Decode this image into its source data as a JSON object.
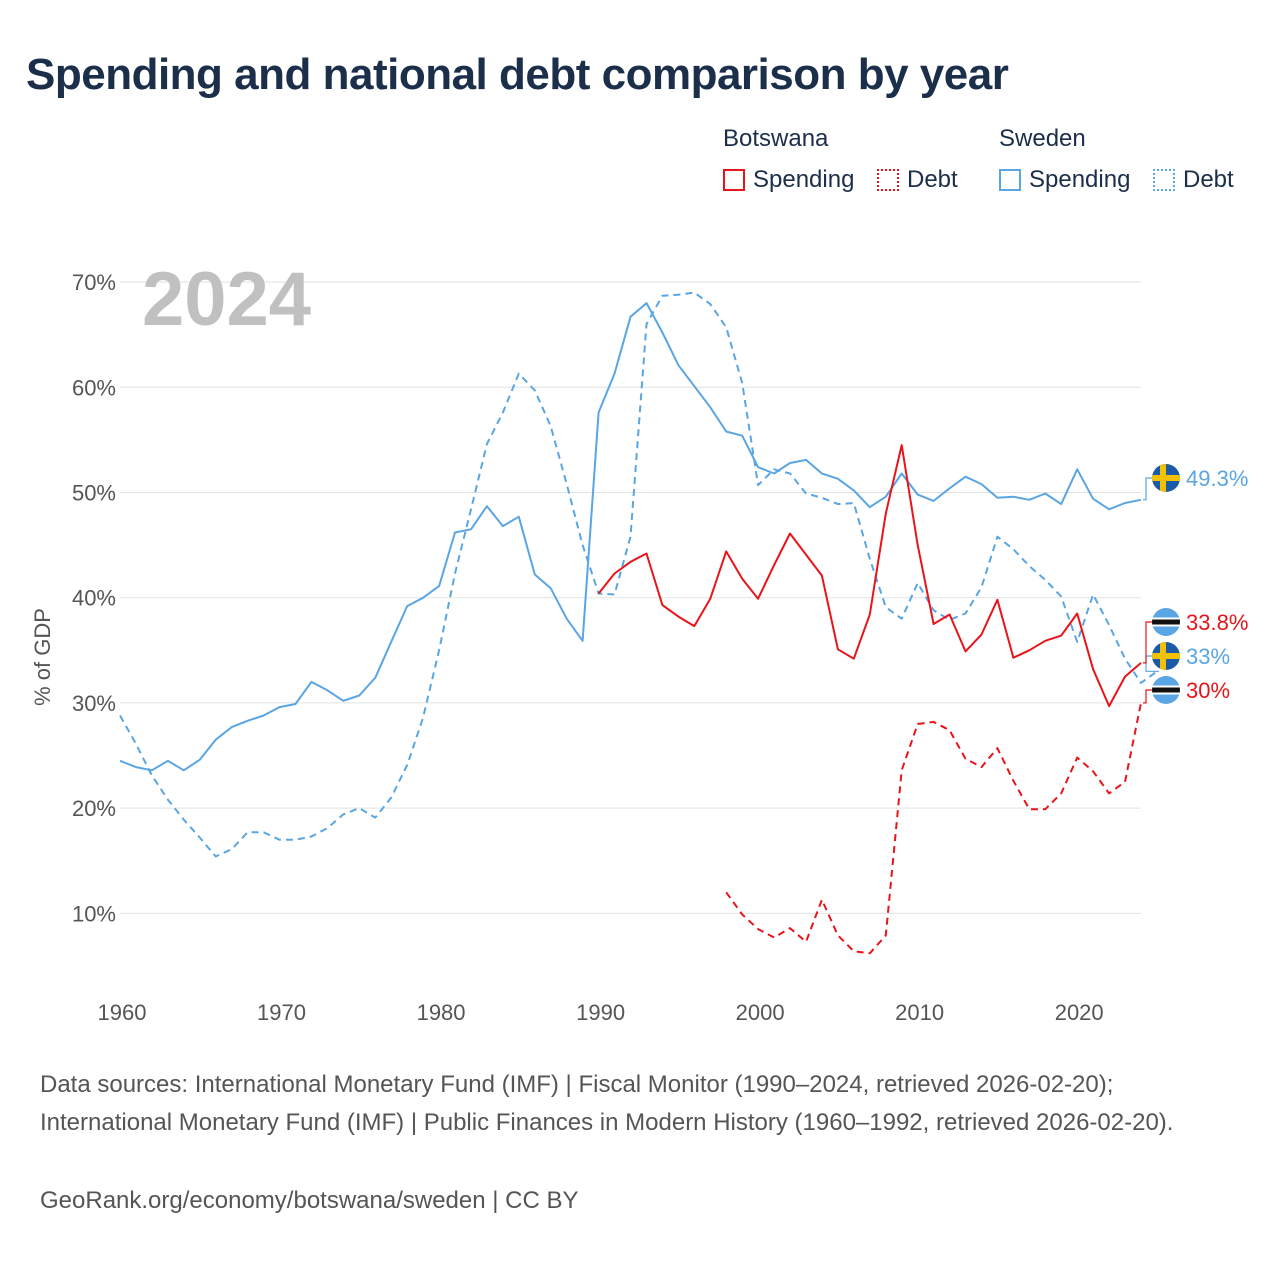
{
  "title": "Spending and national debt comparison by year",
  "legend": {
    "botswana": {
      "label": "Botswana",
      "spending": "Spending",
      "debt": "Debt",
      "color": "#e8141a"
    },
    "sweden": {
      "label": "Sweden",
      "spending": "Spending",
      "debt": "Debt",
      "color": "#5aa5e3"
    }
  },
  "footer": {
    "sources": "Data sources: International Monetary Fund (IMF) | Fiscal Monitor (1990–2024, retrieved 2026-02-20); International Monetary Fund (IMF) | Public Finances in Modern History (1960–1992, retrieved 2026-02-20).",
    "credit": "GeoRank.org/economy/botswana/sweden | CC BY"
  },
  "chart_data": {
    "type": "line",
    "current_year": "2024",
    "ylabel": "% of GDP",
    "xlim": [
      1960,
      2024
    ],
    "ylim": [
      3,
      72
    ],
    "y_ticks": [
      {
        "value": 10,
        "label": "10%"
      },
      {
        "value": 20,
        "label": "20%"
      },
      {
        "value": 30,
        "label": "30%"
      },
      {
        "value": 40,
        "label": "40%"
      },
      {
        "value": 50,
        "label": "50%"
      },
      {
        "value": 60,
        "label": "60%"
      },
      {
        "value": 70,
        "label": "70%"
      }
    ],
    "x_ticks": [
      {
        "value": 1960,
        "label": "1960"
      },
      {
        "value": 1970,
        "label": "1970"
      },
      {
        "value": 1980,
        "label": "1980"
      },
      {
        "value": 1990,
        "label": "1990"
      },
      {
        "value": 2000,
        "label": "2000"
      },
      {
        "value": 2010,
        "label": "2010"
      },
      {
        "value": 2020,
        "label": "2020"
      }
    ],
    "series": [
      {
        "name": "Sweden Spending",
        "country": "Sweden",
        "metric": "Spending",
        "color": "#5aa5e3",
        "dash": false,
        "end_label": "49.3%",
        "flag": "sweden",
        "start_year": 1960,
        "values": [
          24.5,
          23.9,
          23.6,
          24.5,
          23.6,
          24.6,
          26.5,
          27.7,
          28.3,
          28.8,
          29.6,
          29.9,
          32.0,
          31.2,
          30.2,
          30.7,
          32.4,
          35.8,
          39.2,
          40.0,
          41.1,
          46.2,
          46.5,
          48.7,
          46.8,
          47.7,
          42.2,
          40.9,
          38.0,
          35.9,
          57.6,
          61.3,
          66.7,
          68.0,
          65.2,
          62.1,
          60.1,
          58.1,
          55.8,
          55.4,
          52.4,
          51.8,
          52.8,
          53.1,
          51.8,
          51.3,
          50.2,
          48.6,
          49.6,
          51.8,
          49.8,
          49.2,
          50.4,
          51.5,
          50.8,
          49.5,
          49.6,
          49.3,
          49.9,
          48.9,
          52.2,
          49.4,
          48.4,
          49.0,
          49.3
        ]
      },
      {
        "name": "Sweden Debt",
        "country": "Sweden",
        "metric": "Debt",
        "color": "#5aa5e3",
        "dash": true,
        "end_label": "33%",
        "flag": "sweden",
        "start_year": 1960,
        "values": [
          28.8,
          26.1,
          23.1,
          20.8,
          18.9,
          17.2,
          15.4,
          16.1,
          17.7,
          17.7,
          17.0,
          17.0,
          17.3,
          18.1,
          19.4,
          20.0,
          19.1,
          21.0,
          24.1,
          28.6,
          35.0,
          42.3,
          48.4,
          54.6,
          57.6,
          61.3,
          59.7,
          56.3,
          50.8,
          45.0,
          40.4,
          40.3,
          45.8,
          66.0,
          68.7,
          68.8,
          69.0,
          67.9,
          65.7,
          60.4,
          50.7,
          52.2,
          51.8,
          49.9,
          49.5,
          48.9,
          49.0,
          43.7,
          39.1,
          38.0,
          41.4,
          38.8,
          37.9,
          38.5,
          41.0,
          45.8,
          44.6,
          43.0,
          41.7,
          40.1,
          35.8,
          40.3,
          37.4,
          34.2,
          31.9,
          33.0
        ]
      },
      {
        "name": "Botswana Spending",
        "country": "Botswana",
        "metric": "Spending",
        "color": "#e8141a",
        "dash": false,
        "end_label": "33.8%",
        "flag": "botswana",
        "start_year": 1990,
        "values": [
          40.4,
          42.3,
          43.4,
          44.2,
          39.3,
          38.2,
          37.3,
          39.9,
          44.4,
          41.8,
          39.9,
          43.1,
          46.1,
          44.1,
          42.1,
          35.1,
          34.2,
          38.4,
          48.0,
          54.5,
          45.0,
          37.5,
          38.4,
          34.9,
          36.5,
          39.8,
          34.3,
          35.0,
          35.9,
          36.4,
          38.5,
          33.2,
          29.7,
          32.5,
          33.8
        ]
      },
      {
        "name": "Botswana Debt",
        "country": "Botswana",
        "metric": "Debt",
        "color": "#e8141a",
        "dash": true,
        "end_label": "30%",
        "flag": "botswana",
        "start_year": 1998,
        "values": [
          12.0,
          9.9,
          8.5,
          7.7,
          8.6,
          7.3,
          11.3,
          7.9,
          6.4,
          6.2,
          7.9,
          23.6,
          28.0,
          28.2,
          27.4,
          24.7,
          23.9,
          25.7,
          22.6,
          19.9,
          19.9,
          21.4,
          24.8,
          23.5,
          21.4,
          22.5,
          30.0
        ]
      }
    ]
  }
}
